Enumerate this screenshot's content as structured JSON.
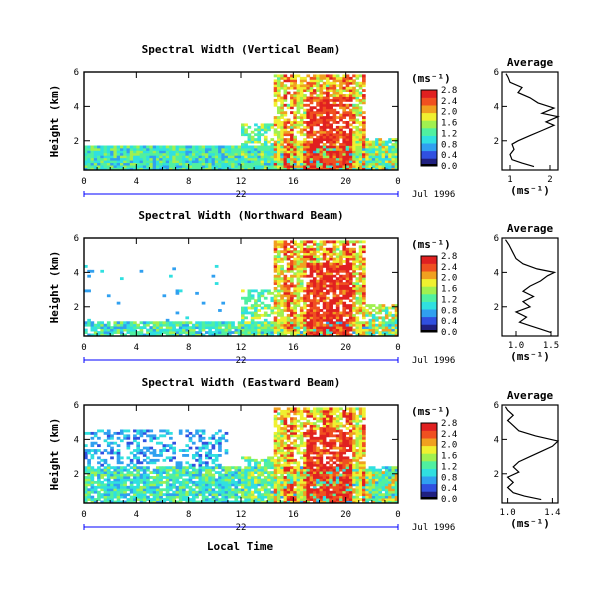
{
  "xlabel": "Local Time",
  "x_ticks": [
    "0",
    "4",
    "8",
    "12",
    "16",
    "20",
    "0"
  ],
  "day_label": "22",
  "date_label": "Jul 1996",
  "ylabel": "Height (km)",
  "y_ticks": [
    "2",
    "4",
    "6"
  ],
  "unit_label": "(ms⁻¹)",
  "avg_unit_label": "(ms⁻¹)",
  "avg_title": "Average",
  "colorbar_ticks": [
    "0.0",
    "0.4",
    "0.8",
    "1.2",
    "1.6",
    "2.0",
    "2.4",
    "2.8"
  ],
  "colors": {
    "scale": [
      "#202080",
      "#3050e0",
      "#30a0f0",
      "#30e0e0",
      "#50f0a0",
      "#a0f050",
      "#f0f030",
      "#f0a020",
      "#f05020",
      "#e02020"
    ],
    "axis": "#000000",
    "timeline": "#0000ff"
  },
  "chart_data": [
    {
      "type": "heatmap",
      "title": "Spectral Width (Vertical Beam)",
      "xlim": [
        0,
        24
      ],
      "ylim": [
        0.3,
        6
      ],
      "clim": [
        0.0,
        2.8
      ],
      "colorbar_labels": [
        "0.0",
        "0.4",
        "0.8",
        "1.2",
        "1.6",
        "2.0",
        "2.4",
        "2.8"
      ],
      "avg_xlim": [
        0.8,
        2.2
      ],
      "avg_xticks": [
        "1",
        "2"
      ],
      "avg_profile": [
        [
          1.6,
          0.5
        ],
        [
          1.3,
          0.7
        ],
        [
          1.05,
          0.9
        ],
        [
          1.0,
          1.2
        ],
        [
          1.1,
          1.5
        ],
        [
          1.05,
          1.8
        ],
        [
          1.2,
          2.0
        ],
        [
          1.5,
          2.3
        ],
        [
          1.8,
          2.6
        ],
        [
          2.1,
          2.9
        ],
        [
          1.9,
          3.1
        ],
        [
          2.2,
          3.4
        ],
        [
          1.8,
          3.6
        ],
        [
          2.1,
          3.9
        ],
        [
          1.7,
          4.2
        ],
        [
          1.5,
          4.5
        ],
        [
          1.2,
          4.8
        ],
        [
          1.3,
          5.1
        ],
        [
          1.0,
          5.4
        ],
        [
          0.95,
          5.7
        ],
        [
          0.9,
          5.9
        ]
      ]
    },
    {
      "type": "heatmap",
      "title": "Spectral Width (Northward Beam)",
      "xlim": [
        0,
        24
      ],
      "ylim": [
        0.3,
        6
      ],
      "clim": [
        0.0,
        2.8
      ],
      "colorbar_labels": [
        "0.0",
        "0.4",
        "0.8",
        "1.2",
        "1.6",
        "2.0",
        "2.4",
        "2.8"
      ],
      "avg_xlim": [
        0.8,
        1.6
      ],
      "avg_xticks": [
        "1.0",
        "1.5"
      ],
      "avg_profile": [
        [
          1.5,
          0.5
        ],
        [
          1.35,
          0.7
        ],
        [
          1.2,
          0.9
        ],
        [
          1.05,
          1.1
        ],
        [
          1.15,
          1.4
        ],
        [
          1.0,
          1.7
        ],
        [
          1.2,
          2.0
        ],
        [
          1.1,
          2.3
        ],
        [
          1.25,
          2.6
        ],
        [
          1.1,
          2.9
        ],
        [
          1.2,
          3.2
        ],
        [
          1.35,
          3.5
        ],
        [
          1.45,
          3.8
        ],
        [
          1.55,
          4.0
        ],
        [
          1.3,
          4.2
        ],
        [
          1.1,
          4.5
        ],
        [
          1.0,
          4.8
        ],
        [
          0.95,
          5.2
        ],
        [
          0.9,
          5.6
        ],
        [
          0.85,
          5.9
        ]
      ]
    },
    {
      "type": "heatmap",
      "title": "Spectral Width (Eastward Beam)",
      "xlim": [
        0,
        24
      ],
      "ylim": [
        0.3,
        6
      ],
      "clim": [
        0.0,
        2.8
      ],
      "colorbar_labels": [
        "0.0",
        "0.4",
        "0.8",
        "1.2",
        "1.6",
        "2.0",
        "2.4",
        "2.8"
      ],
      "avg_xlim": [
        0.95,
        1.45
      ],
      "avg_xticks": [
        "1.0",
        "1.4"
      ],
      "avg_profile": [
        [
          1.3,
          0.5
        ],
        [
          1.15,
          0.7
        ],
        [
          1.05,
          0.9
        ],
        [
          1.0,
          1.2
        ],
        [
          1.05,
          1.5
        ],
        [
          1.0,
          1.8
        ],
        [
          1.1,
          2.1
        ],
        [
          1.05,
          2.4
        ],
        [
          1.1,
          2.7
        ],
        [
          1.2,
          3.0
        ],
        [
          1.3,
          3.3
        ],
        [
          1.4,
          3.6
        ],
        [
          1.45,
          3.9
        ],
        [
          1.25,
          4.2
        ],
        [
          1.1,
          4.5
        ],
        [
          1.05,
          4.8
        ],
        [
          1.0,
          5.1
        ],
        [
          1.05,
          5.4
        ],
        [
          1.0,
          5.7
        ],
        [
          0.98,
          5.9
        ]
      ]
    }
  ]
}
